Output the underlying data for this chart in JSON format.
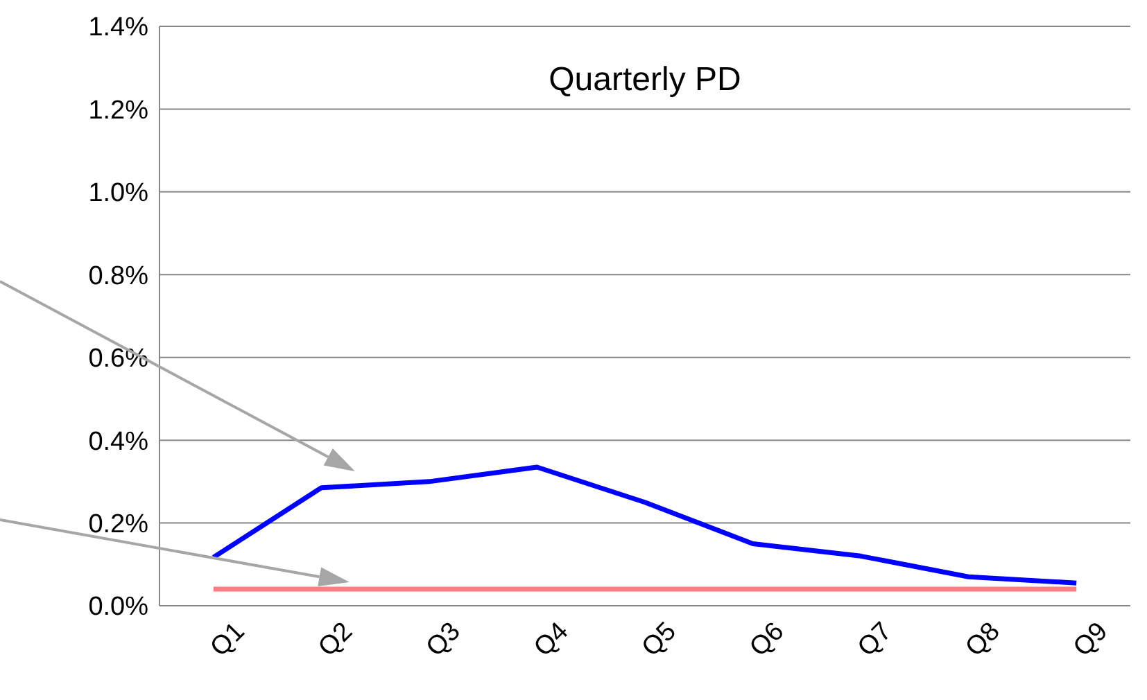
{
  "chart_data": {
    "type": "line",
    "title": "Quarterly PD",
    "categories": [
      "Q1",
      "Q2",
      "Q3",
      "Q4",
      "Q5",
      "Q6",
      "Q7",
      "Q8",
      "Q9"
    ],
    "series": [
      {
        "color": "#0000ff",
        "values": [
          0.117,
          0.285,
          0.3,
          0.335,
          0.25,
          0.15,
          0.12,
          0.07,
          0.055
        ]
      },
      {
        "color": "#ff7c80",
        "values": [
          0.04,
          0.04,
          0.04,
          0.04,
          0.04,
          0.04,
          0.04,
          0.04,
          0.04
        ]
      }
    ],
    "ylim": [
      0,
      1.4
    ],
    "yticks": [
      {
        "value": 0,
        "label": "0.0%"
      },
      {
        "value": 0.2,
        "label": "0.2%"
      },
      {
        "value": 0.4,
        "label": "0.4%"
      },
      {
        "value": 0.6,
        "label": "0.6%"
      },
      {
        "value": 0.8,
        "label": "0.8%"
      },
      {
        "value": 1.0,
        "label": "1.0%"
      },
      {
        "value": 1.2,
        "label": "1.2%"
      },
      {
        "value": 1.4,
        "label": "1.4%"
      }
    ],
    "grid": "y",
    "marker": "none",
    "line_style": "solid"
  }
}
